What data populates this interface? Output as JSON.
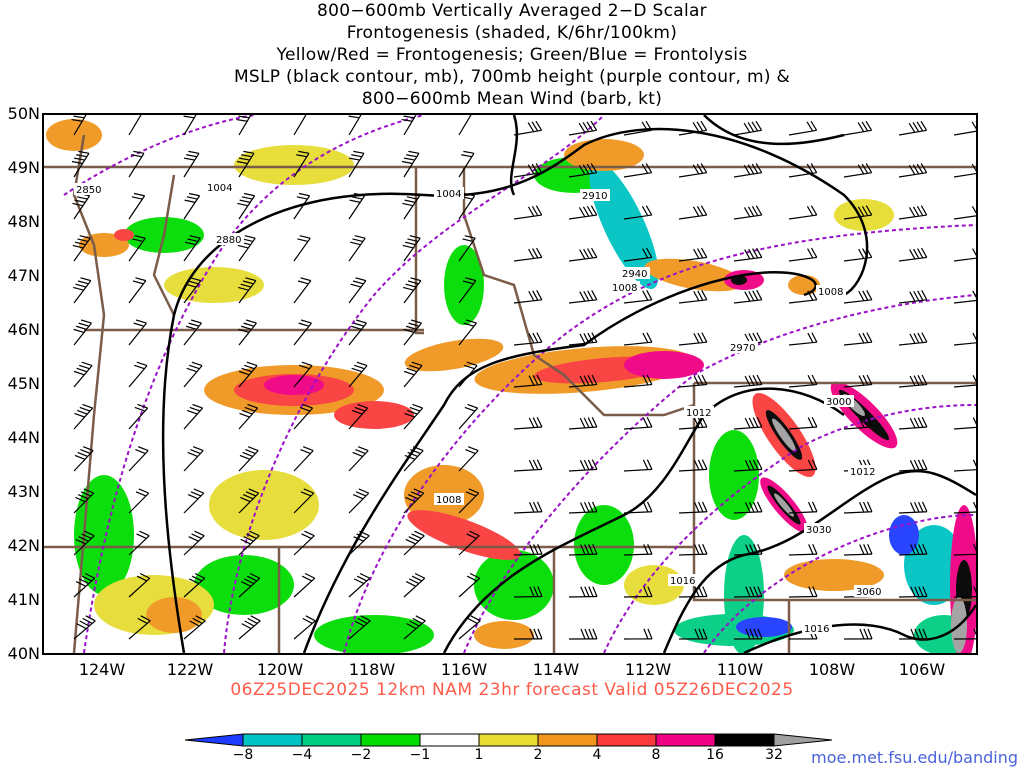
{
  "title": {
    "line1": "800−600mb Vertically Averaged 2−D Scalar",
    "line2": "Frontogenesis (shaded, K/6hr/100km)",
    "line3": "Yellow/Red = Frontogenesis;  Green/Blue = Frontolysis",
    "line4": "MSLP (black contour, mb), 700mb height (purple contour, m) &",
    "line5": "800−600mb Mean Wind (barb, kt)"
  },
  "axes": {
    "lat_labels": [
      "50N",
      "49N",
      "48N",
      "47N",
      "46N",
      "45N",
      "44N",
      "43N",
      "42N",
      "41N",
      "40N"
    ],
    "lon_labels": [
      "124W",
      "122W",
      "120W",
      "118W",
      "116W",
      "114W",
      "112W",
      "110W",
      "108W",
      "106W"
    ]
  },
  "contour_labels": {
    "mslp": [
      "1004",
      "1004",
      "1008",
      "1008",
      "1012",
      "1012",
      "1008",
      "1016",
      "1016"
    ],
    "height": [
      "2850",
      "2880",
      "2910",
      "2940",
      "2970",
      "3000",
      "3030",
      "3060"
    ]
  },
  "run_info": "06Z25DEC2025 12km NAM 23hr forecast Valid 05Z26DEC2025",
  "colorbar": {
    "labels": [
      "−8",
      "−4",
      "−2",
      "−1",
      "1",
      "2",
      "4",
      "8",
      "16",
      "32"
    ],
    "colors": [
      "#1e3cff",
      "#00c3c3",
      "#00cd82",
      "#00dc00",
      "#ffffff",
      "#e6dc32",
      "#f0961e",
      "#fa3c3c",
      "#f00082",
      "#000000",
      "#a0a0a0"
    ]
  },
  "url": "moe.met.fsu.edu/banding"
}
